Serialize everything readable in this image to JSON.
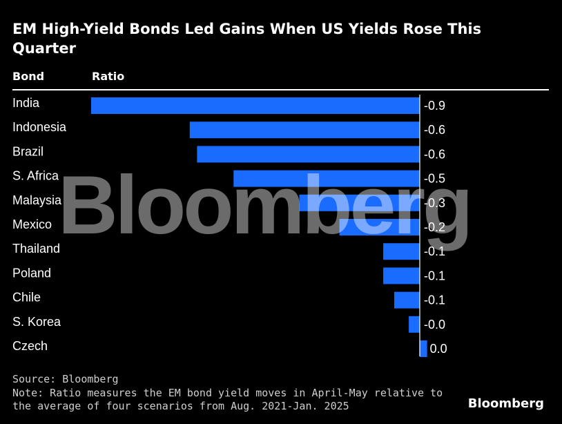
{
  "chart_data": {
    "type": "bar",
    "orientation": "horizontal",
    "title": "EM High-Yield Bonds Led Gains When US Yields Rose This Quarter",
    "column_headers": {
      "category": "Bond",
      "value": "Ratio"
    },
    "categories": [
      "India",
      "Indonesia",
      "Brazil",
      "S. Africa",
      "Malaysia",
      "Mexico",
      "Thailand",
      "Poland",
      "Chile",
      "S. Korea",
      "Czech"
    ],
    "values": [
      -0.9,
      -0.63,
      -0.61,
      -0.51,
      -0.33,
      -0.22,
      -0.1,
      -0.1,
      -0.07,
      -0.03,
      0.02
    ],
    "value_labels": [
      "-0.9",
      "-0.6",
      "-0.6",
      "-0.5",
      "-0.3",
      "-0.2",
      "-0.1",
      "-0.1",
      "-0.1",
      "-0.0",
      "0.0"
    ],
    "xlim": [
      -0.9,
      0.03
    ],
    "grid": false,
    "bar_color": "#1a6cff"
  },
  "footer": {
    "source": "Source: Bloomberg",
    "note": "Note: Ratio measures the EM bond yield moves in April-May relative to the average of four scenarios from Aug. 2021-Jan. 2025"
  },
  "watermark": "Bloomberg",
  "brand": "Bloomberg"
}
